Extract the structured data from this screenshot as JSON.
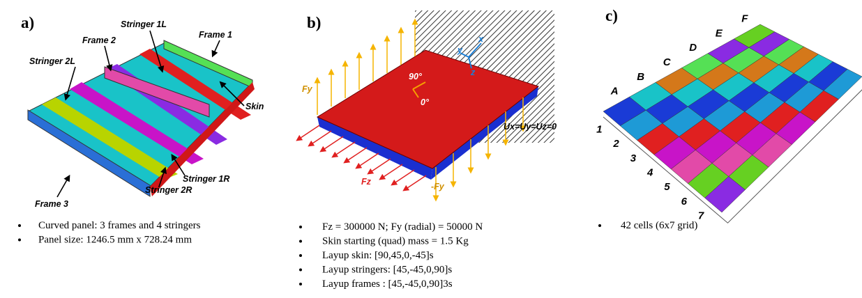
{
  "panels": [
    {
      "label": "a)",
      "annotations": [
        "Stringer 1L",
        "Frame 2",
        "Frame 1",
        "Stringer 2L",
        "Skin",
        "Stringer 1R",
        "Frame 3",
        "Stringer 2R"
      ],
      "bullets": [
        "Curved panel: 3 frames and 4 stringers",
        "Panel size: 1246.5 mm x 728.24 mm"
      ]
    },
    {
      "label": "b)",
      "annotations": [
        "Fy",
        "90°",
        "0°",
        "x",
        "y",
        "z",
        "Fz",
        "-Fy",
        "Ux=Uy=Uz=0"
      ],
      "bullets": [
        "Fz = 300000 N; Fy (radial) = 50000 N",
        "Skin starting (quad) mass = 1.5 Kg",
        "Layup skin: [90,45,0,-45]s",
        "Layup stringers: [45,-45,0,90]s",
        "Layup frames : [45,-45,0,90]3s"
      ]
    },
    {
      "label": "c)",
      "columns": [
        "A",
        "B",
        "C",
        "D",
        "E",
        "F"
      ],
      "rows": [
        "1",
        "2",
        "3",
        "4",
        "5",
        "6",
        "7"
      ],
      "bullets": [
        "42 cells (6x7 grid)"
      ]
    }
  ]
}
